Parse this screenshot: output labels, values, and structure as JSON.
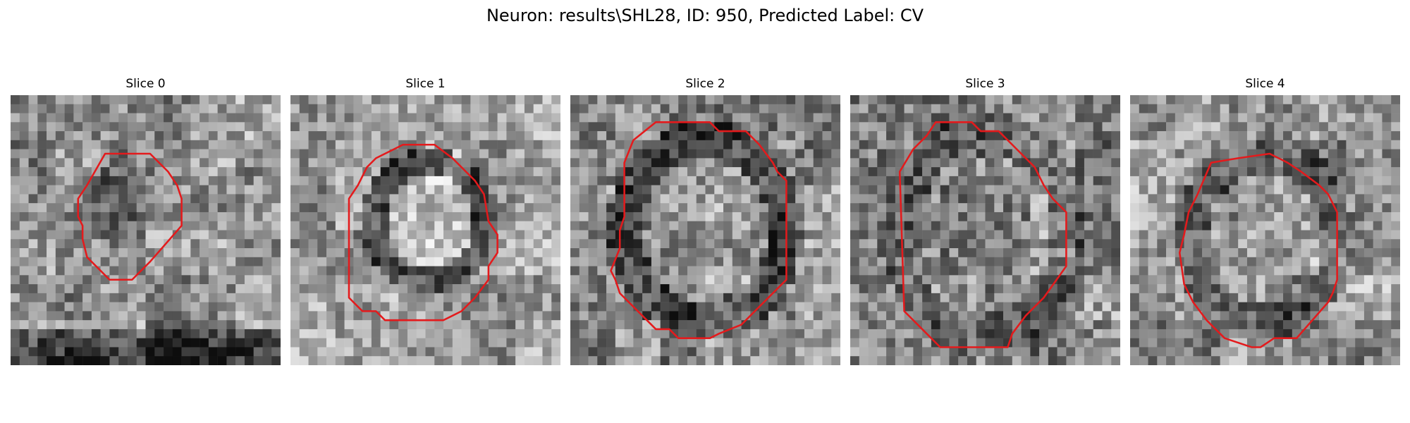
{
  "figure": {
    "title": "Neuron: results\\SHL28, ID: 950, Predicted Label: CV"
  },
  "slices": [
    {
      "title": "Slice 0"
    },
    {
      "title": "Slice 1"
    },
    {
      "title": "Slice 2"
    },
    {
      "title": "Slice 3"
    },
    {
      "title": "Slice 4"
    }
  ],
  "colors": {
    "contour": "#e41a1c",
    "background": "#ffffff"
  },
  "image": {
    "colormap": "grayscale",
    "grid_cells": 30
  }
}
